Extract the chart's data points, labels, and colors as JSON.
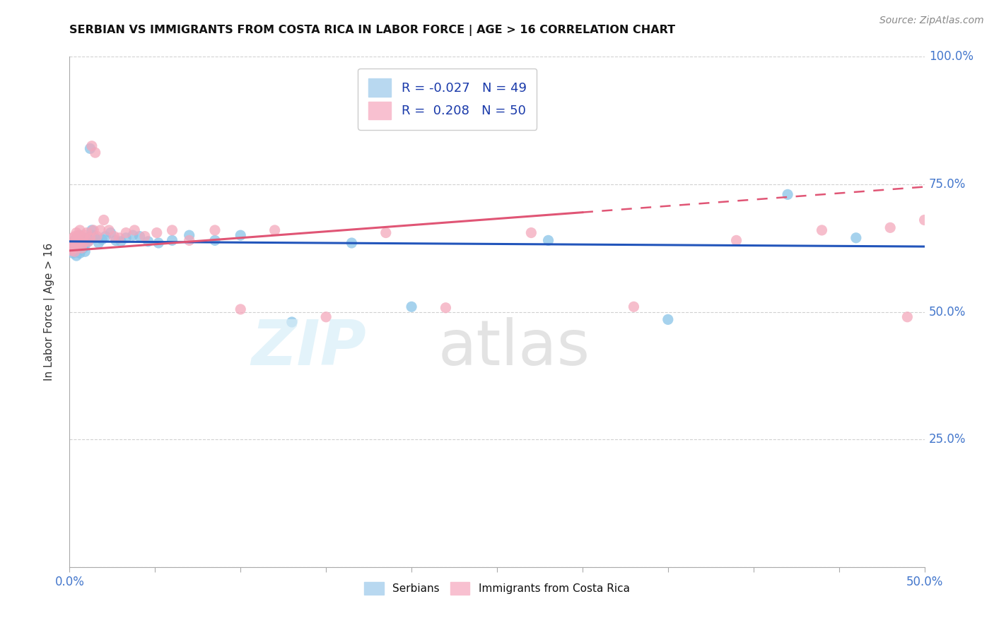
{
  "title": "SERBIAN VS IMMIGRANTS FROM COSTA RICA IN LABOR FORCE | AGE > 16 CORRELATION CHART",
  "source_text": "Source: ZipAtlas.com",
  "watermark_zip": "ZIP",
  "watermark_atlas": "atlas",
  "serbians_color": "#89c4e8",
  "costa_rica_color": "#f4a8bc",
  "trend_serbian_color": "#2255bb",
  "trend_costa_rica_color": "#e05575",
  "xlim": [
    0.0,
    0.5
  ],
  "ylim": [
    0.0,
    1.0
  ],
  "yticks": [
    0.0,
    0.25,
    0.5,
    0.75,
    1.0
  ],
  "ytick_labels": [
    "",
    "25.0%",
    "50.0%",
    "75.0%",
    "100.0%"
  ],
  "xtick_labels_show": [
    "0.0%",
    "50.0%"
  ],
  "legend_r1": "R = -0.027",
  "legend_n1": "N = 49",
  "legend_r2": "R =  0.208",
  "legend_n2": "N = 50",
  "bottom_label1": "Serbians",
  "bottom_label2": "Immigrants from Costa Rica",
  "ylabel": "In Labor Force | Age > 16",
  "serb_x": [
    0.001,
    0.001,
    0.002,
    0.002,
    0.002,
    0.003,
    0.003,
    0.003,
    0.004,
    0.004,
    0.004,
    0.005,
    0.005,
    0.006,
    0.006,
    0.007,
    0.007,
    0.008,
    0.008,
    0.009,
    0.009,
    0.01,
    0.011,
    0.012,
    0.013,
    0.014,
    0.015,
    0.017,
    0.019,
    0.021,
    0.024,
    0.027,
    0.03,
    0.033,
    0.037,
    0.041,
    0.046,
    0.052,
    0.06,
    0.07,
    0.085,
    0.1,
    0.13,
    0.165,
    0.2,
    0.28,
    0.35,
    0.42,
    0.46
  ],
  "serb_y": [
    0.625,
    0.63,
    0.62,
    0.635,
    0.615,
    0.64,
    0.625,
    0.618,
    0.632,
    0.645,
    0.61,
    0.638,
    0.628,
    0.65,
    0.615,
    0.642,
    0.635,
    0.625,
    0.64,
    0.63,
    0.618,
    0.645,
    0.638,
    0.82,
    0.66,
    0.65,
    0.645,
    0.635,
    0.642,
    0.648,
    0.655,
    0.64,
    0.638,
    0.645,
    0.65,
    0.648,
    0.638,
    0.635,
    0.64,
    0.65,
    0.64,
    0.65,
    0.48,
    0.635,
    0.51,
    0.64,
    0.485,
    0.73,
    0.645
  ],
  "cr_x": [
    0.001,
    0.001,
    0.002,
    0.002,
    0.002,
    0.003,
    0.003,
    0.003,
    0.004,
    0.004,
    0.004,
    0.005,
    0.005,
    0.006,
    0.006,
    0.007,
    0.008,
    0.008,
    0.009,
    0.01,
    0.011,
    0.012,
    0.013,
    0.014,
    0.015,
    0.016,
    0.018,
    0.02,
    0.023,
    0.026,
    0.029,
    0.033,
    0.038,
    0.044,
    0.051,
    0.06,
    0.07,
    0.085,
    0.1,
    0.12,
    0.15,
    0.185,
    0.22,
    0.27,
    0.33,
    0.39,
    0.44,
    0.48,
    0.49,
    0.5
  ],
  "cr_y": [
    0.63,
    0.62,
    0.645,
    0.625,
    0.635,
    0.648,
    0.618,
    0.638,
    0.655,
    0.625,
    0.642,
    0.635,
    0.65,
    0.638,
    0.66,
    0.625,
    0.645,
    0.635,
    0.65,
    0.655,
    0.638,
    0.645,
    0.825,
    0.66,
    0.812,
    0.648,
    0.66,
    0.68,
    0.66,
    0.648,
    0.645,
    0.655,
    0.66,
    0.648,
    0.655,
    0.66,
    0.64,
    0.66,
    0.505,
    0.66,
    0.49,
    0.655,
    0.508,
    0.655,
    0.51,
    0.64,
    0.66,
    0.665,
    0.49,
    0.68
  ],
  "trend_serb_x0": 0.0,
  "trend_serb_x1": 0.5,
  "trend_serb_y0": 0.638,
  "trend_serb_y1": 0.628,
  "trend_cr_x0": 0.0,
  "trend_cr_x1": 0.5,
  "trend_cr_y0": 0.62,
  "trend_cr_y1": 0.745,
  "trend_cr_solid_x1": 0.3
}
